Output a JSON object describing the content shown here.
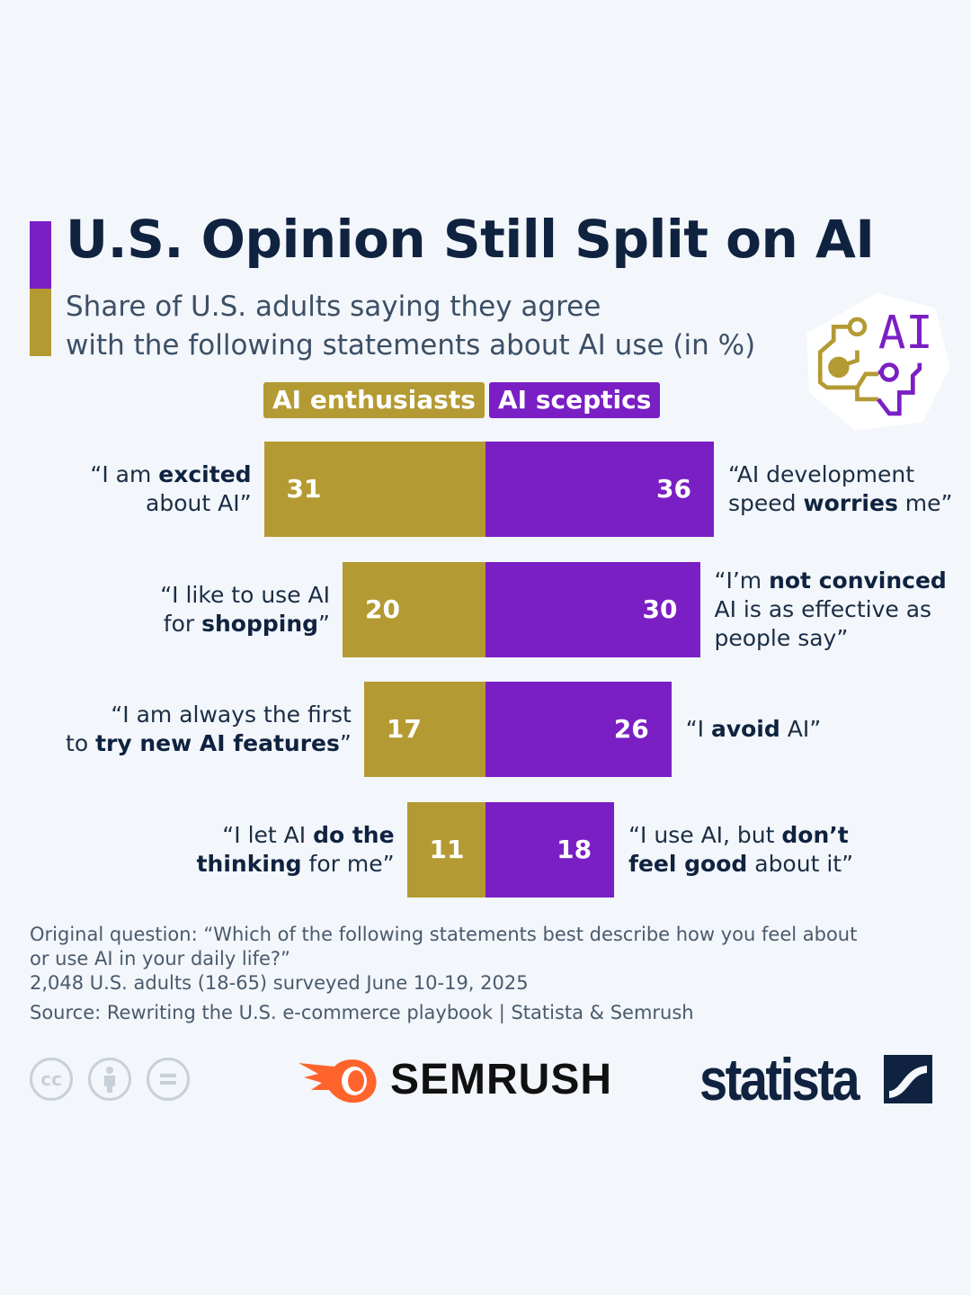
{
  "title": "U.S. Opinion Still Split on AI",
  "subtitle": [
    "Share of U.S. adults saying they agree",
    "with the following statements about AI use (in %)"
  ],
  "colors": {
    "enthusiasts": "#b39a33",
    "sceptics": "#7a1fc4",
    "title": "#0f2340",
    "background": "#f3f6fa"
  },
  "chart_data": {
    "type": "bar",
    "orientation": "horizontal-diverging",
    "unit": "%",
    "series": [
      {
        "name": "AI enthusiasts",
        "values": [
          31,
          20,
          17,
          11
        ],
        "labels": [
          [
            [
              {
                "t": "“I am "
              },
              {
                "t": "excited",
                "b": true
              }
            ],
            [
              {
                "t": "about AI”"
              }
            ]
          ],
          [
            [
              {
                "t": "“I like to use AI"
              }
            ],
            [
              {
                "t": "for "
              },
              {
                "t": "shopping",
                "b": true
              },
              {
                "t": "”"
              }
            ]
          ],
          [
            [
              {
                "t": "“I am always the first"
              }
            ],
            [
              {
                "t": "to "
              },
              {
                "t": "try new AI features",
                "b": true
              },
              {
                "t": "”"
              }
            ]
          ],
          [
            [
              {
                "t": "“I let AI "
              },
              {
                "t": "do the",
                "b": true
              }
            ],
            [
              {
                "t": "thinking",
                "b": true
              },
              {
                "t": " for me”"
              }
            ]
          ]
        ]
      },
      {
        "name": "AI sceptics",
        "values": [
          36,
          30,
          26,
          18
        ],
        "labels": [
          [
            [
              {
                "t": "“AI development"
              }
            ],
            [
              {
                "t": "speed "
              },
              {
                "t": "worries",
                "b": true
              },
              {
                "t": " me”"
              }
            ]
          ],
          [
            [
              {
                "t": "“I’m "
              },
              {
                "t": "not convinced",
                "b": true
              }
            ],
            [
              {
                "t": "AI is as effective as"
              }
            ],
            [
              {
                "t": "people say”"
              }
            ]
          ],
          [
            [
              {
                "t": "“I "
              },
              {
                "t": "avoid",
                "b": true
              },
              {
                "t": " AI”"
              }
            ]
          ],
          [
            [
              {
                "t": "“I use AI, but "
              },
              {
                "t": "don’t",
                "b": true
              }
            ],
            [
              {
                "t": "feel good",
                "b": true
              },
              {
                "t": " about it”"
              }
            ]
          ]
        ]
      }
    ]
  },
  "notes": [
    "Original question: “Which of the following statements best describe how you feel about",
    "or use AI in your daily life?”",
    "2,048 U.S. adults (18-65) surveyed June 10-19, 2025"
  ],
  "source": "Source: Rewriting the U.S. e-commerce playbook | Statista & Semrush",
  "logos": {
    "ai_icon_text": "AI",
    "semrush": "SEMRUSH",
    "statista": "statista",
    "cc": "cc"
  }
}
